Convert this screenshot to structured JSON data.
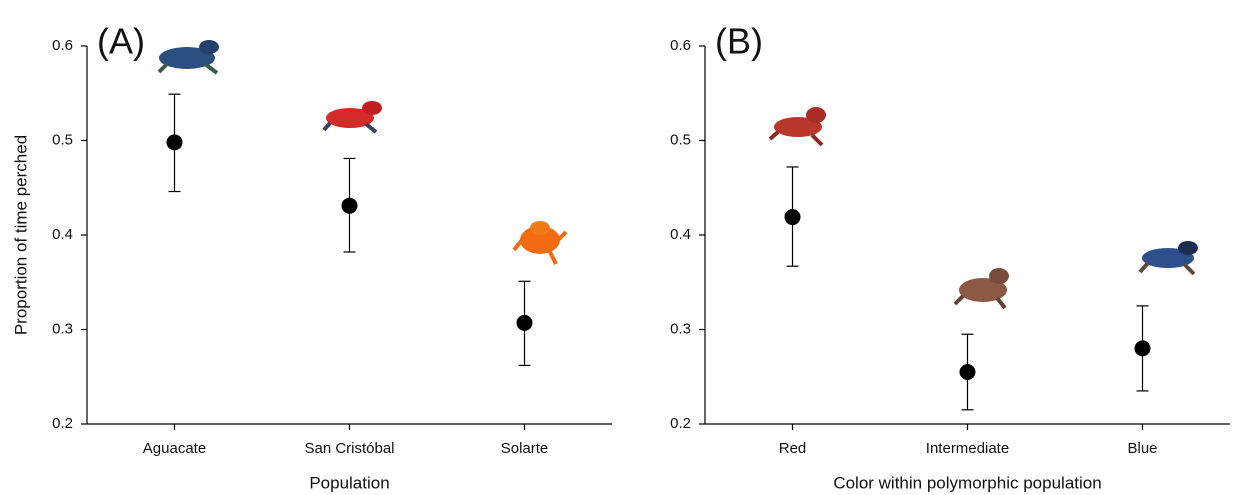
{
  "chart_data": [
    {
      "type": "errorbar",
      "panel_label": "(A)",
      "y_label": "Proportion of time perched",
      "x_label": "Population",
      "categories": [
        "Aguacate",
        "San Cristóbal",
        "Solarte"
      ],
      "values": [
        0.498,
        0.431,
        0.307
      ],
      "lower": [
        0.446,
        0.382,
        0.262
      ],
      "upper": [
        0.549,
        0.481,
        0.351
      ],
      "color": "#000000",
      "ylim": [
        0.2,
        0.6
      ],
      "yticks": [
        0.2,
        0.3,
        0.4,
        0.5,
        0.6
      ]
    },
    {
      "type": "errorbar",
      "panel_label": "(B)",
      "x_label": "Color within polymorphic population",
      "categories": [
        "Red",
        "Intermediate",
        "Blue"
      ],
      "values": [
        0.419,
        0.255,
        0.28
      ],
      "lower": [
        0.367,
        0.215,
        0.235
      ],
      "upper": [
        0.472,
        0.295,
        0.325
      ],
      "color": "#000000",
      "ylim": [
        0.2,
        0.6
      ],
      "yticks": [
        0.2,
        0.3,
        0.4,
        0.5,
        0.6
      ]
    }
  ]
}
